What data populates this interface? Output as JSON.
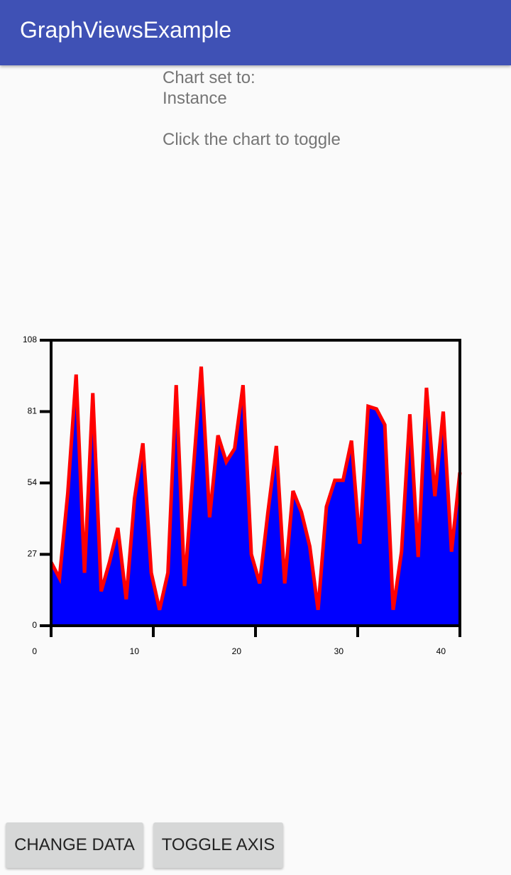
{
  "app_bar": {
    "title": "GraphViewsExample"
  },
  "status": {
    "line1": "Chart set to:",
    "line2": "Instance",
    "hint": "Click the chart to toggle"
  },
  "buttons": [
    "CHANGE DATA",
    "TOGGLE AXIS"
  ],
  "chart_data": {
    "type": "area",
    "x": [
      0,
      0.82,
      1.63,
      2.45,
      3.27,
      4.08,
      4.9,
      5.71,
      6.53,
      7.35,
      8.16,
      8.98,
      9.8,
      10.61,
      11.43,
      12.24,
      13.06,
      13.88,
      14.69,
      15.51,
      16.33,
      17.14,
      17.96,
      18.78,
      19.59,
      20.41,
      21.22,
      22.04,
      22.86,
      23.67,
      24.49,
      25.31,
      26.12,
      26.94,
      27.76,
      28.57,
      29.39,
      30.2,
      31.02,
      31.84,
      32.65,
      33.47,
      34.29,
      35.1,
      35.92,
      36.73,
      37.55,
      38.37,
      39.18,
      40
    ],
    "values": [
      24,
      18,
      50,
      95,
      20,
      88,
      13,
      24,
      37,
      10,
      48,
      69,
      20,
      6,
      20,
      91,
      15,
      57,
      98,
      41,
      72,
      62,
      67,
      91,
      27,
      16,
      43,
      68,
      16,
      51,
      43,
      30,
      6,
      45,
      55,
      55,
      70,
      31,
      83,
      82,
      76,
      6,
      28,
      80,
      26,
      90,
      49,
      81,
      28,
      58
    ],
    "color": "#0000ff",
    "line_color": "#ff0000",
    "xlim": [
      0,
      40
    ],
    "xticks": [
      0,
      10,
      20,
      30,
      40
    ],
    "ylim": [
      0,
      108
    ],
    "yticks": [
      0,
      27,
      54,
      81,
      108
    ]
  }
}
